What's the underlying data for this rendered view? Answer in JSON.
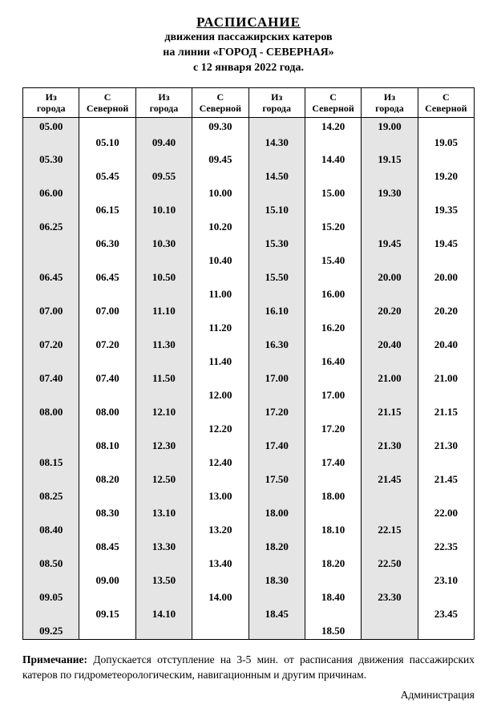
{
  "header": {
    "title": "РАСПИСАНИЕ",
    "sub1": "движения  пассажирских катеров",
    "sub2": "на линии «ГОРОД - СЕВЕРНАЯ»",
    "sub3": "с 12 января 2022 года."
  },
  "table": {
    "columns": [
      "Из города",
      "С Северной",
      "Из города",
      "С Северной",
      "Из города",
      "С Северной",
      "Из города",
      "С Северной"
    ],
    "col_bg": [
      "g",
      "w",
      "g",
      "w",
      "g",
      "w",
      "g",
      "w"
    ],
    "rows": [
      [
        "05.00",
        "",
        "",
        "09.30",
        "",
        "14.20",
        "19.00",
        ""
      ],
      [
        "",
        "05.10",
        "09.40",
        "",
        "14.30",
        "",
        "",
        "19.05"
      ],
      [
        "05.30",
        "",
        "",
        "09.45",
        "",
        "14.40",
        "19.15",
        ""
      ],
      [
        "",
        "05.45",
        "09.55",
        "",
        "14.50",
        "",
        "",
        "19.20"
      ],
      [
        "06.00",
        "",
        "",
        "10.00",
        "",
        "15.00",
        "19.30",
        ""
      ],
      [
        "",
        "06.15",
        "10.10",
        "",
        "15.10",
        "",
        "",
        "19.35"
      ],
      [
        "06.25",
        "",
        "",
        "10.20",
        "",
        "15.20",
        "",
        ""
      ],
      [
        "",
        "06.30",
        "10.30",
        "",
        "15.30",
        "",
        "19.45",
        "19.45"
      ],
      [
        "",
        "",
        "",
        "10.40",
        "",
        "15.40",
        "",
        ""
      ],
      [
        "06.45",
        "06.45",
        "10.50",
        "",
        "15.50",
        "",
        "20.00",
        "20.00"
      ],
      [
        "",
        "",
        "",
        "11.00",
        "",
        "16.00",
        "",
        ""
      ],
      [
        "07.00",
        "07.00",
        "11.10",
        "",
        "16.10",
        "",
        "20.20",
        "20.20"
      ],
      [
        "",
        "",
        "",
        "11.20",
        "",
        "16.20",
        "",
        ""
      ],
      [
        "07.20",
        "07.20",
        "11.30",
        "",
        "16.30",
        "",
        "20.40",
        "20.40"
      ],
      [
        "",
        "",
        "",
        "11.40",
        "",
        "16.40",
        "",
        ""
      ],
      [
        "07.40",
        "07.40",
        "11.50",
        "",
        "17.00",
        "",
        "21.00",
        "21.00"
      ],
      [
        "",
        "",
        "",
        "12.00",
        "",
        "17.00",
        "",
        ""
      ],
      [
        "08.00",
        "08.00",
        "12.10",
        "",
        "17.20",
        "",
        "21.15",
        "21.15"
      ],
      [
        "",
        "",
        "",
        "12.20",
        "",
        "17.20",
        "",
        ""
      ],
      [
        "",
        "08.10",
        "12.30",
        "",
        "17.40",
        "",
        "21.30",
        "21.30"
      ],
      [
        "08.15",
        "",
        "",
        "12.40",
        "",
        "17.40",
        "",
        ""
      ],
      [
        "",
        "08.20",
        "12.50",
        "",
        "17.50",
        "",
        "21.45",
        "21.45"
      ],
      [
        "08.25",
        "",
        "",
        "13.00",
        "",
        "18.00",
        "",
        ""
      ],
      [
        "",
        "08.30",
        "13.10",
        "",
        "18.00",
        "",
        "",
        "22.00"
      ],
      [
        "08.40",
        "",
        "",
        "13.20",
        "",
        "18.10",
        "22.15",
        ""
      ],
      [
        "",
        "08.45",
        "13.30",
        "",
        "18.20",
        "",
        "",
        "22.35"
      ],
      [
        "08.50",
        "",
        "",
        "13.40",
        "",
        "18.20",
        "22.50",
        ""
      ],
      [
        "",
        "09.00",
        "13.50",
        "",
        "18.30",
        "",
        "",
        "23.10"
      ],
      [
        "09.05",
        "",
        "",
        "14.00",
        "",
        "18.40",
        "23.30",
        ""
      ],
      [
        "",
        "09.15",
        "14.10",
        "",
        "18.45",
        "",
        "",
        "23.45"
      ],
      [
        "09.25",
        "",
        "",
        "",
        "",
        "18.50",
        "",
        ""
      ]
    ]
  },
  "note": {
    "label": "Примечание:",
    "text": " Допускается отступление на 3-5 мин. от расписания движения пассажирских катеров по гидрометеорологическим, навигационным и другим причинам."
  },
  "signature": "Администрация"
}
